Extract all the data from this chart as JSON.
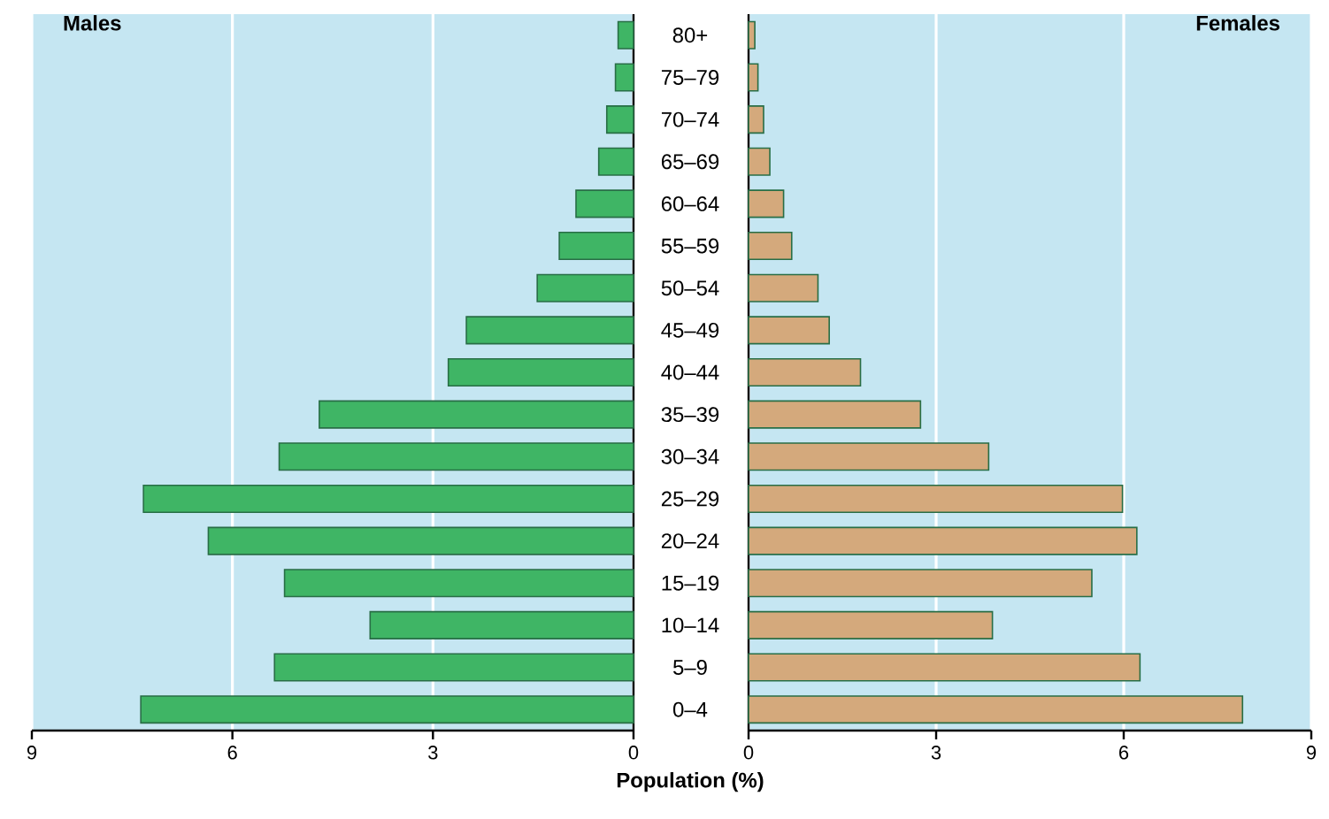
{
  "chart_data": [
    {
      "type": "bar",
      "orientation": "horizontal",
      "title": "Males",
      "xlabel": "Population (%)",
      "categories": [
        "80+",
        "75–79",
        "70–74",
        "65–69",
        "60–64",
        "55–59",
        "50–54",
        "45–49",
        "40–44",
        "35–39",
        "30–34",
        "25–29",
        "20–24",
        "15–19",
        "10–14",
        "5–9",
        "0–4"
      ],
      "values": [
        0.23,
        0.27,
        0.4,
        0.52,
        0.86,
        1.11,
        1.44,
        2.5,
        2.77,
        4.7,
        5.3,
        7.33,
        6.36,
        5.22,
        3.94,
        5.37,
        7.37
      ],
      "color": "#3fb565",
      "xlim": [
        9,
        0
      ],
      "xticks": [
        9,
        6,
        3,
        0
      ],
      "grid": "x"
    },
    {
      "type": "bar",
      "orientation": "horizontal",
      "title": "Females",
      "categories": [
        null,
        null,
        null,
        null,
        null,
        null,
        null,
        null,
        null,
        null,
        null,
        null,
        null,
        null,
        null,
        null,
        null
      ],
      "values": [
        0.1,
        0.15,
        0.24,
        0.34,
        0.56,
        0.69,
        1.11,
        1.29,
        1.79,
        2.75,
        3.84,
        5.98,
        6.21,
        5.49,
        3.9,
        6.26,
        7.9
      ],
      "color": "#d4a97c",
      "xlim": [
        0,
        9
      ],
      "xticks": [
        0,
        3,
        6,
        9
      ],
      "grid": "x",
      "tick_labels": "x"
    }
  ]
}
